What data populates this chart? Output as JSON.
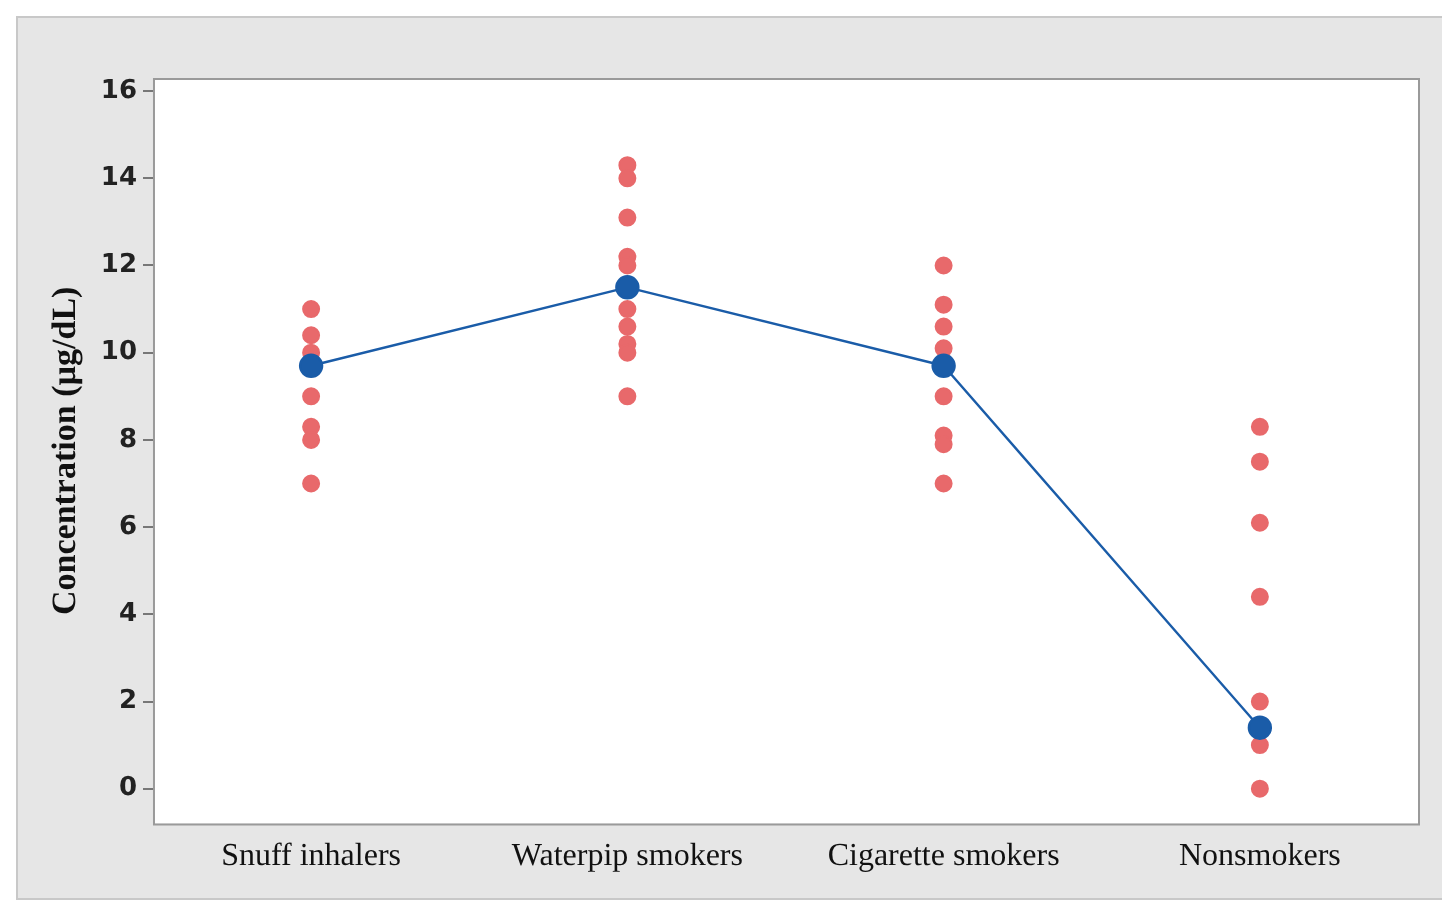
{
  "chart_data": {
    "type": "scatter",
    "ylabel": "Concentration (µg/dL)",
    "categories": [
      "Snuff inhalers",
      "Waterpip smokers",
      "Cigarette smokers",
      "Nonsmokers"
    ],
    "ylim": [
      -0.8,
      16.3
    ],
    "yticks": [
      0,
      2,
      4,
      6,
      8,
      10,
      12,
      14,
      16
    ],
    "grid": false,
    "legend": false,
    "series": [
      {
        "type": "scatter",
        "color": "#e8696b",
        "marker": "circle",
        "x": [
          "Snuff inhalers",
          "Snuff inhalers",
          "Snuff inhalers",
          "Snuff inhalers",
          "Snuff inhalers",
          "Snuff inhalers",
          "Snuff inhalers",
          "Waterpip smokers",
          "Waterpip smokers",
          "Waterpip smokers",
          "Waterpip smokers",
          "Waterpip smokers",
          "Waterpip smokers",
          "Waterpip smokers",
          "Waterpip smokers",
          "Waterpip smokers",
          "Waterpip smokers",
          "Cigarette smokers",
          "Cigarette smokers",
          "Cigarette smokers",
          "Cigarette smokers",
          "Cigarette smokers",
          "Cigarette smokers",
          "Cigarette smokers",
          "Cigarette smokers",
          "Nonsmokers",
          "Nonsmokers",
          "Nonsmokers",
          "Nonsmokers",
          "Nonsmokers",
          "Nonsmokers",
          "Nonsmokers"
        ],
        "values": [
          11,
          10.4,
          10,
          9,
          8.3,
          8,
          7,
          14.3,
          14,
          13.1,
          12.2,
          12,
          11,
          10.6,
          10.2,
          10,
          9,
          12,
          11.1,
          10.6,
          10.1,
          9,
          8.1,
          7.9,
          7,
          8.3,
          7.5,
          6.1,
          4.4,
          2,
          1,
          0
        ]
      },
      {
        "type": "line",
        "color": "#1a5ca8",
        "marker": "circle",
        "line_style": "solid",
        "values": [
          9.7,
          11.5,
          9.7,
          1.4
        ]
      }
    ]
  }
}
